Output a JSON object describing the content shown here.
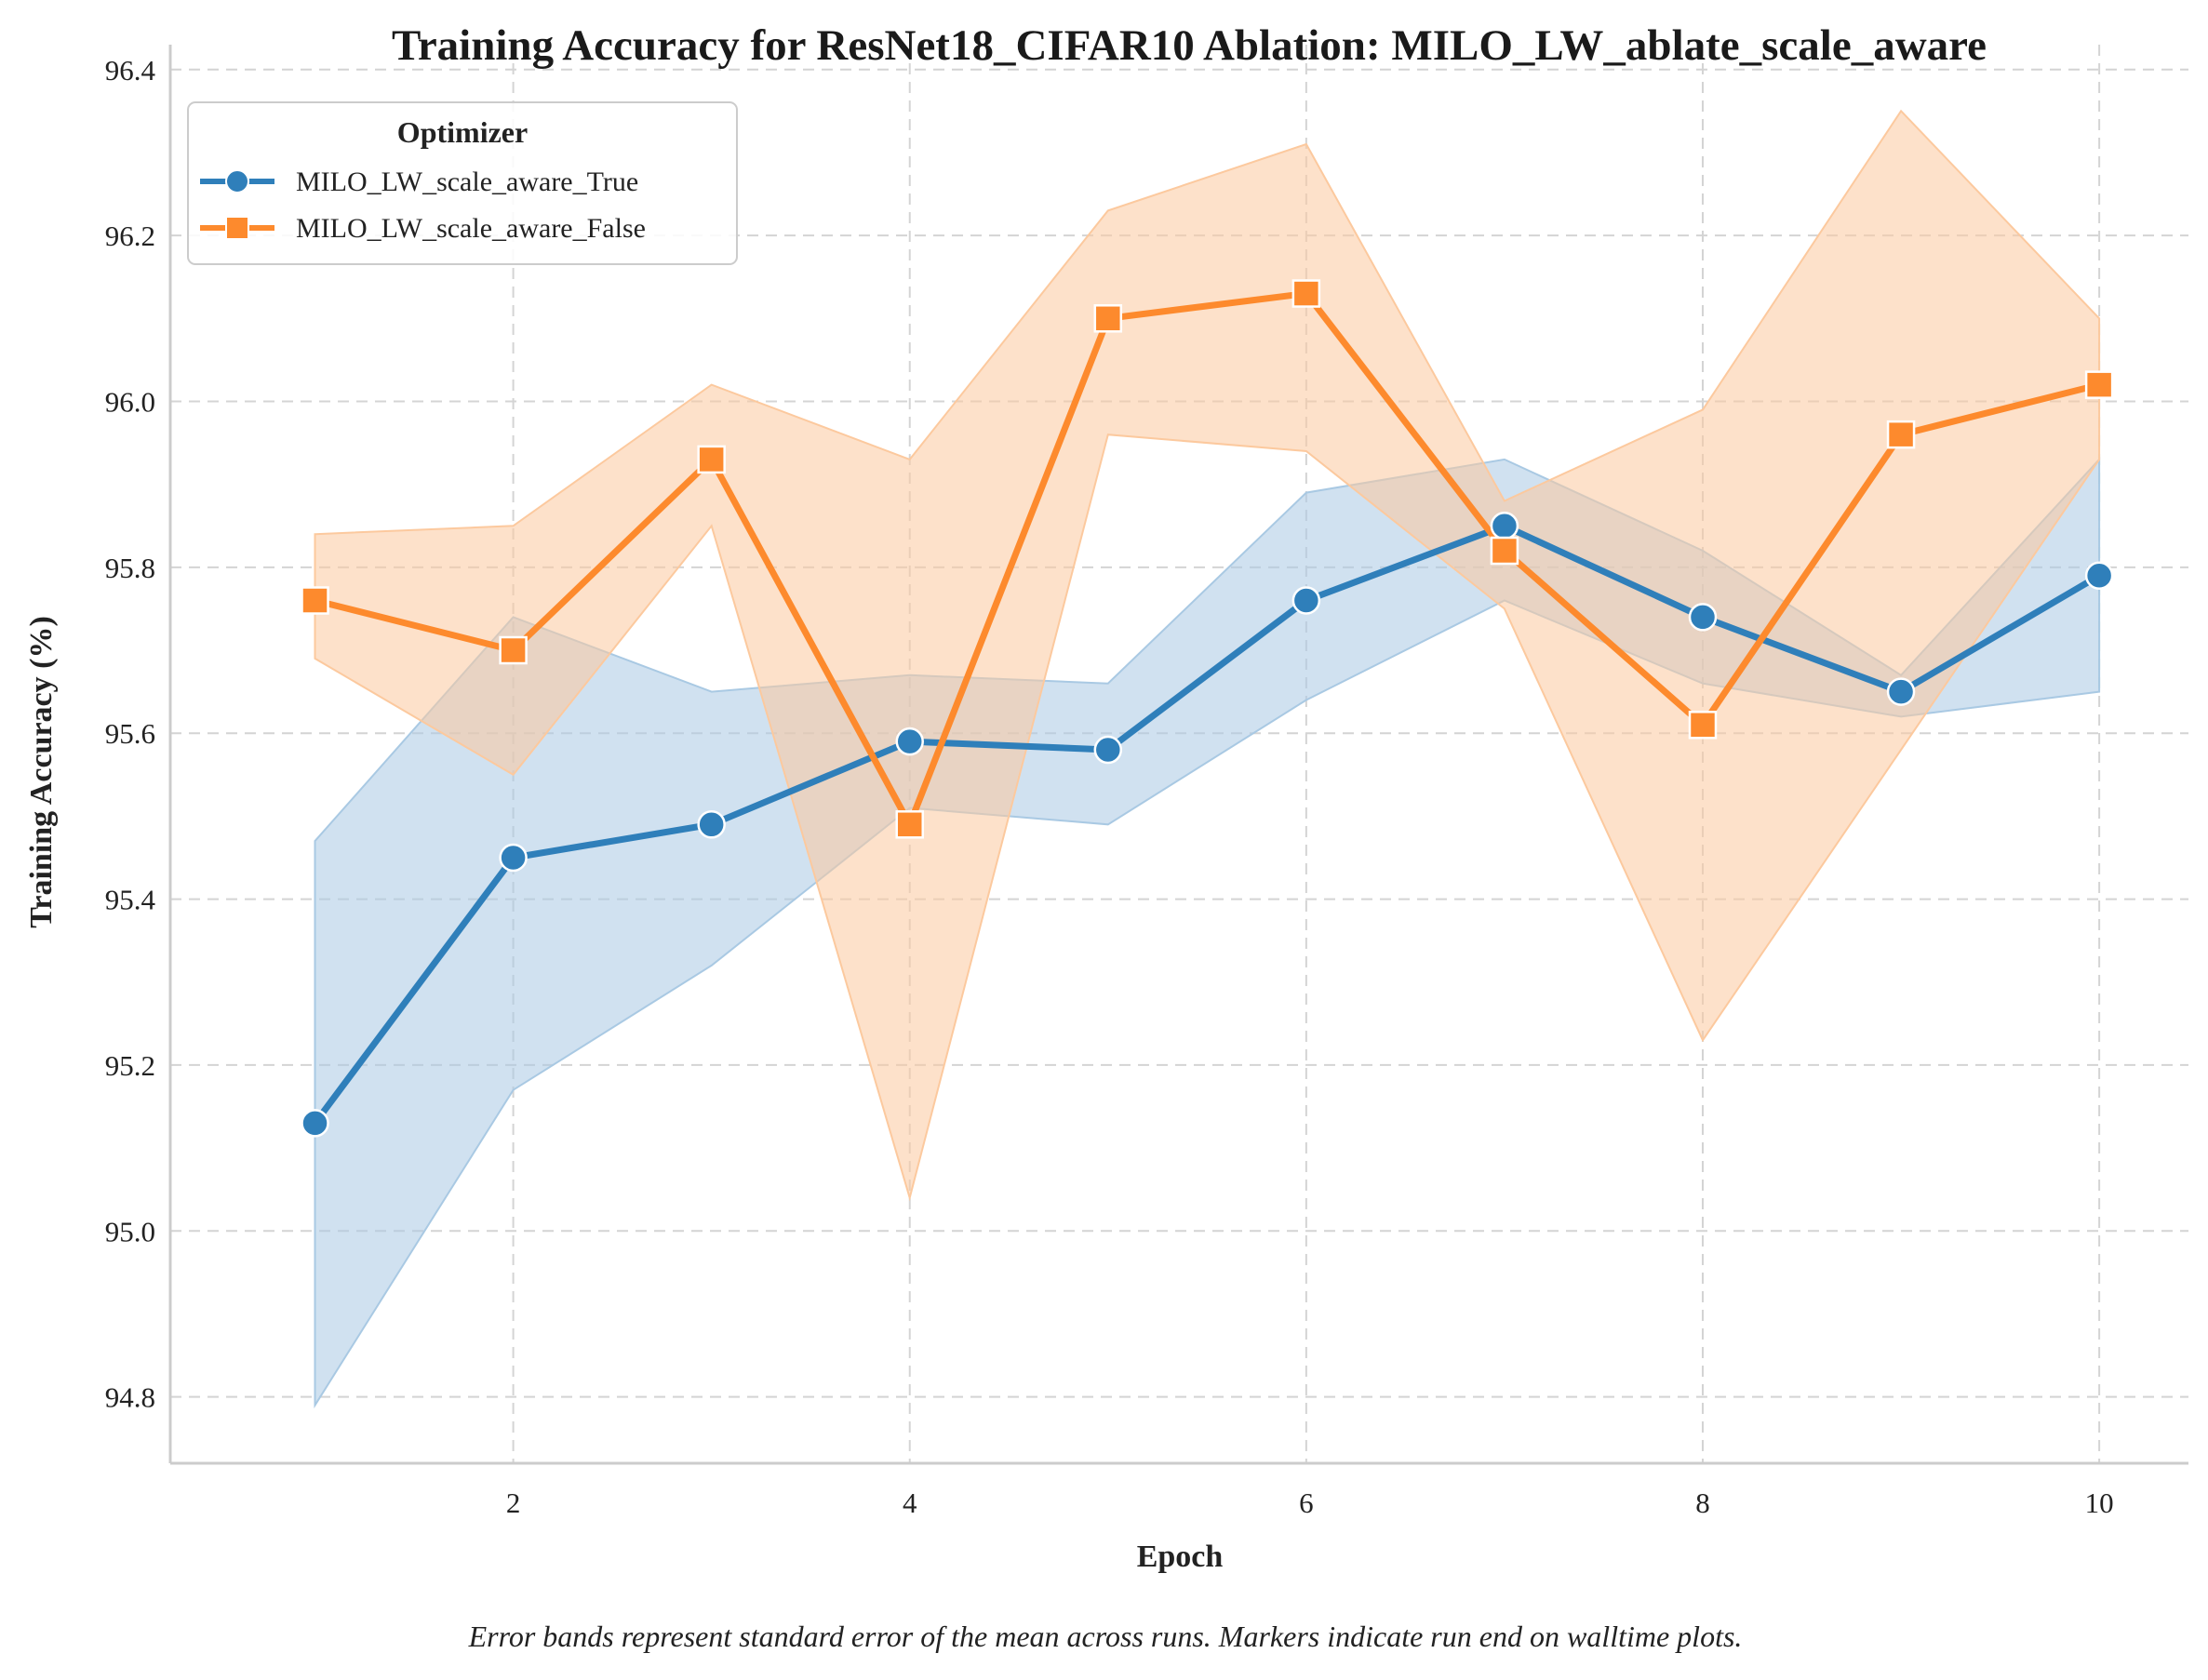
{
  "chart_data": {
    "type": "line",
    "title": "Training Accuracy for ResNet18_CIFAR10 Ablation: MILO_LW_ablate_scale_aware",
    "xlabel": "Epoch",
    "ylabel": "Training Accuracy (%)",
    "caption": "Error bands represent standard error of the mean across runs. Markers indicate run end on walltime plots.",
    "xlim": [
      0.27,
      10.45
    ],
    "ylim": [
      94.72,
      96.43
    ],
    "xticks": [
      2,
      4,
      6,
      8,
      10
    ],
    "xtick_labels": [
      "2",
      "4",
      "6",
      "8",
      "10"
    ],
    "yticks": [
      94.8,
      95.0,
      95.2,
      95.4,
      95.6,
      95.8,
      96.0,
      96.2,
      96.4
    ],
    "ytick_labels": [
      "94.8",
      "95.0",
      "95.2",
      "95.4",
      "95.6",
      "95.8",
      "96.0",
      "96.2",
      "96.4"
    ],
    "grid": true,
    "legend": {
      "title": "Optimizer",
      "placement": "top-left"
    },
    "x": [
      1,
      2,
      3,
      4,
      5,
      6,
      7,
      8,
      9,
      10
    ],
    "series": [
      {
        "name": "MILO_LW_scale_aware_True",
        "color": "#2f7fba",
        "band_color": "#a9c9e3",
        "marker": "circle",
        "values": [
          95.13,
          95.45,
          95.49,
          95.59,
          95.58,
          95.76,
          95.85,
          95.74,
          95.65,
          95.79
        ],
        "lower": [
          94.79,
          95.17,
          95.32,
          95.51,
          95.49,
          95.64,
          95.76,
          95.66,
          95.62,
          95.65
        ],
        "upper": [
          95.47,
          95.74,
          95.65,
          95.67,
          95.66,
          95.89,
          95.93,
          95.82,
          95.67,
          95.93
        ]
      },
      {
        "name": "MILO_LW_scale_aware_False",
        "color": "#fd8a2d",
        "band_color": "#fcc99e",
        "marker": "square",
        "values": [
          95.76,
          95.7,
          95.93,
          95.49,
          96.1,
          96.13,
          95.82,
          95.61,
          95.96,
          96.02
        ],
        "lower": [
          95.69,
          95.55,
          95.85,
          95.04,
          95.96,
          95.94,
          95.75,
          95.23,
          95.58,
          95.93
        ],
        "upper": [
          95.84,
          95.85,
          96.02,
          95.93,
          96.23,
          96.31,
          95.88,
          95.99,
          96.35,
          96.1
        ]
      }
    ]
  }
}
